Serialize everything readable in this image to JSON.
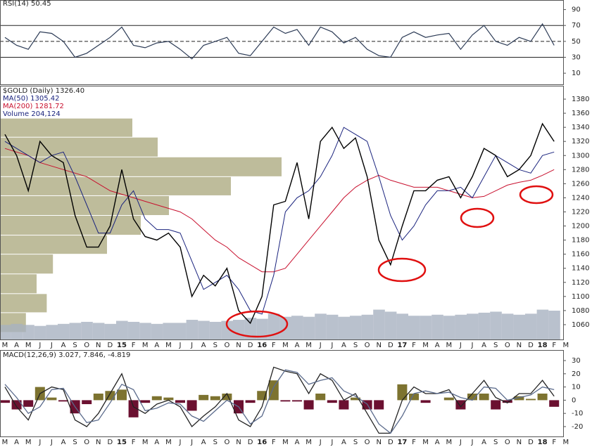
{
  "chart_data": [
    {
      "type": "rsi",
      "title": "RSI(14) 50.45",
      "color": "#2b3a55",
      "ylim": [
        -4,
        102
      ],
      "yticks": [
        10,
        30,
        50,
        70,
        90
      ],
      "reference_lines": [
        {
          "value": 70,
          "style": "solid"
        },
        {
          "value": 50,
          "style": "dashed"
        },
        {
          "value": 30,
          "style": "solid"
        }
      ],
      "values": [
        55,
        45,
        40,
        62,
        60,
        50,
        30,
        35,
        45,
        55,
        68,
        45,
        42,
        48,
        50,
        40,
        28,
        45,
        50,
        55,
        35,
        32,
        50,
        68,
        60,
        65,
        45,
        68,
        62,
        48,
        55,
        40,
        32,
        30,
        55,
        62,
        55,
        58,
        60,
        40,
        58,
        70,
        50,
        45,
        55,
        50,
        72,
        45,
        null
      ]
    },
    {
      "type": "stock",
      "categories": [
        "M",
        "A",
        "M",
        "J",
        "J",
        "A",
        "S",
        "O",
        "N",
        "D",
        "15",
        "F",
        "M",
        "A",
        "M",
        "J",
        "J",
        "A",
        "S",
        "O",
        "N",
        "D",
        "16",
        "F",
        "M",
        "A",
        "M",
        "J",
        "J",
        "A",
        "S",
        "O",
        "N",
        "D",
        "17",
        "F",
        "M",
        "A",
        "M",
        "J",
        "J",
        "A",
        "S",
        "O",
        "N",
        "D",
        "18",
        "F",
        "M"
      ],
      "ylim": [
        1038,
        1399
      ],
      "yticks": [
        1060,
        1080,
        1100,
        1120,
        1140,
        1160,
        1180,
        1200,
        1220,
        1240,
        1260,
        1280,
        1300,
        1320,
        1340,
        1360,
        1380
      ],
      "series": [
        {
          "name": "$GOLD (Daily) 1326.40",
          "color": "#000000",
          "values": [
            1330,
            1300,
            1250,
            1320,
            1300,
            1290,
            1215,
            1170,
            1170,
            1200,
            1280,
            1210,
            1185,
            1180,
            1190,
            1170,
            1100,
            1130,
            1115,
            1140,
            1080,
            1062,
            1100,
            1230,
            1235,
            1290,
            1210,
            1320,
            1340,
            1310,
            1325,
            1270,
            1180,
            1145,
            1200,
            1250,
            1250,
            1265,
            1270,
            1240,
            1270,
            1310,
            1300,
            1270,
            1280,
            1300,
            1345,
            1320,
            null
          ]
        },
        {
          "name": "MA(50) 1305.42",
          "color": "#1a237e",
          "values": [
            1320,
            1310,
            1300,
            1290,
            1300,
            1305,
            1270,
            1230,
            1190,
            1190,
            1230,
            1250,
            1210,
            1195,
            1195,
            1190,
            1150,
            1110,
            1120,
            1130,
            1110,
            1080,
            1075,
            1130,
            1220,
            1240,
            1250,
            1270,
            1300,
            1340,
            1330,
            1320,
            1270,
            1215,
            1180,
            1200,
            1230,
            1250,
            1250,
            1255,
            1240,
            1270,
            1300,
            1290,
            1280,
            1275,
            1300,
            1305,
            null
          ]
        },
        {
          "name": "MA(200) 1281.72",
          "color": "#c8102e",
          "values": [
            1310,
            1305,
            1300,
            1290,
            1285,
            1280,
            1275,
            1270,
            1260,
            1250,
            1245,
            1240,
            1235,
            1230,
            1225,
            1220,
            1210,
            1195,
            1180,
            1170,
            1155,
            1145,
            1135,
            1135,
            1140,
            1160,
            1180,
            1200,
            1220,
            1240,
            1255,
            1265,
            1272,
            1265,
            1260,
            1255,
            1255,
            1255,
            1250,
            1245,
            1240,
            1242,
            1250,
            1258,
            1262,
            1265,
            1272,
            1280,
            null
          ]
        }
      ],
      "volume": {
        "name": "Volume 204,124",
        "color": "#a7b2c1",
        "ylim": [
          0,
          2500000
        ],
        "values": [
          150000,
          160000,
          150000,
          140000,
          150000,
          160000,
          170000,
          180000,
          170000,
          160000,
          190000,
          180000,
          170000,
          160000,
          170000,
          170000,
          200000,
          190000,
          180000,
          190000,
          200000,
          220000,
          210000,
          260000,
          230000,
          240000,
          230000,
          260000,
          250000,
          230000,
          240000,
          250000,
          300000,
          280000,
          260000,
          240000,
          240000,
          250000,
          240000,
          250000,
          260000,
          270000,
          280000,
          260000,
          250000,
          260000,
          300000,
          290000,
          null
        ]
      },
      "volume_by_price": {
        "color": "#b3b08a",
        "xlim": [
          0,
          100
        ],
        "bins": [
          1049,
          1077,
          1104,
          1132,
          1160,
          1187,
          1215,
          1243,
          1270,
          1298,
          1326,
          1353
        ],
        "values": [
          4.6,
          8.3,
          6.5,
          9.4,
          19,
          25,
          30,
          41,
          50,
          28,
          23.5
        ]
      }
    },
    {
      "type": "macd",
      "title": "MACD(12,26,9) 3.027, 7.846, -4.819",
      "categories": [
        "M",
        "A",
        "M",
        "J",
        "J",
        "A",
        "S",
        "O",
        "N",
        "D",
        "15",
        "F",
        "M",
        "A",
        "M",
        "J",
        "J",
        "A",
        "S",
        "O",
        "N",
        "D",
        "16",
        "F",
        "M",
        "A",
        "M",
        "J",
        "J",
        "A",
        "S",
        "O",
        "N",
        "D",
        "17",
        "F",
        "M",
        "A",
        "M",
        "J",
        "J",
        "A",
        "S",
        "O",
        "N",
        "D",
        "18",
        "F",
        "M"
      ],
      "ylim": [
        -28,
        38
      ],
      "yticks": [
        -20,
        -10,
        0,
        10,
        20,
        30
      ],
      "series": [
        {
          "color": "#222222",
          "values": [
            10,
            -5,
            -15,
            5,
            10,
            8,
            -15,
            -20,
            -10,
            5,
            20,
            -5,
            -10,
            -3,
            0,
            -5,
            -20,
            -12,
            -5,
            5,
            -15,
            -20,
            -5,
            25,
            22,
            20,
            5,
            20,
            15,
            0,
            5,
            -10,
            -25,
            -25,
            0,
            10,
            5,
            5,
            8,
            -5,
            5,
            15,
            2,
            -2,
            5,
            5,
            15,
            3,
            null
          ]
        },
        {
          "color": "#5b6b8c",
          "values": [
            12,
            2,
            -10,
            -5,
            8,
            9,
            -5,
            -17,
            -15,
            -2,
            12,
            8,
            -8,
            -6,
            -2,
            -3,
            -12,
            -16,
            -8,
            0,
            -5,
            -18,
            -12,
            10,
            23,
            21,
            12,
            15,
            17,
            7,
            3,
            -3,
            -18,
            -25,
            -12,
            5,
            7,
            5,
            6,
            2,
            0,
            10,
            9,
            0,
            2,
            4,
            10,
            8,
            null
          ]
        }
      ],
      "histogram": {
        "positive_color": "#7d7330",
        "negative_color": "#6b1030",
        "values": [
          -2,
          -7,
          -5,
          10,
          2,
          -1,
          -10,
          -3,
          5,
          7,
          8,
          -13,
          -2,
          3,
          2,
          -2,
          -8,
          4,
          3,
          5,
          -10,
          -2,
          7,
          15,
          -1,
          -1,
          -7,
          5,
          -2,
          -7,
          2,
          -7,
          -7,
          0,
          12,
          5,
          -2,
          0,
          2,
          -7,
          5,
          5,
          -7,
          -2,
          3,
          1,
          5,
          -5,
          null
        ]
      }
    }
  ]
}
